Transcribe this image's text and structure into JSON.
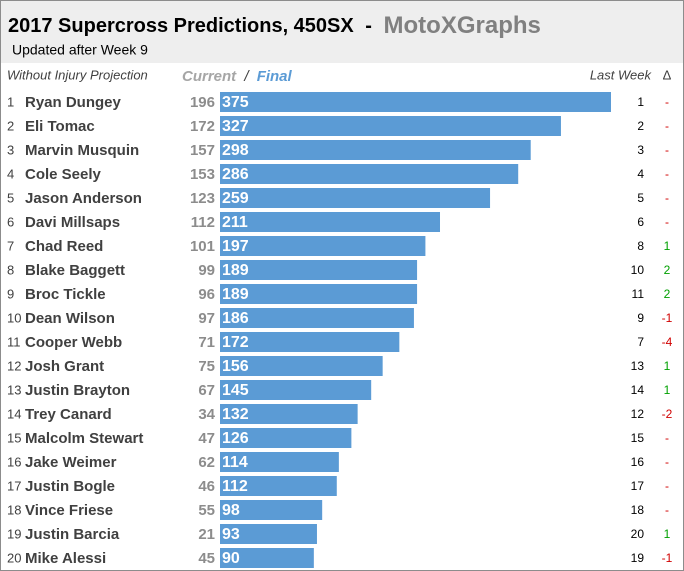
{
  "chart_data": {
    "type": "bar",
    "title": "2017 Supercross Predictions, 450SX",
    "title_separator": "-",
    "brand": "MotoXGraphs",
    "subtitle": "Updated after Week 9",
    "column_headers": {
      "left": "Without Injury Projection",
      "current": "Current",
      "slash": "/",
      "final": "Final",
      "last_week": "Last Week",
      "change": "Δ"
    },
    "ranks": [
      1,
      2,
      3,
      4,
      5,
      6,
      7,
      8,
      9,
      10,
      11,
      12,
      13,
      14,
      15,
      16,
      17,
      18,
      19,
      20
    ],
    "categories": [
      "Ryan Dungey",
      "Eli Tomac",
      "Marvin Musquin",
      "Cole Seely",
      "Jason Anderson",
      "Davi Millsaps",
      "Chad Reed",
      "Blake Baggett",
      "Broc Tickle",
      "Dean Wilson",
      "Cooper Webb",
      "Josh Grant",
      "Justin Brayton",
      "Trey Canard",
      "Malcolm Stewart",
      "Jake Weimer",
      "Justin Bogle",
      "Vince Friese",
      "Justin Barcia",
      "Mike Alessi"
    ],
    "current": [
      196,
      172,
      157,
      153,
      123,
      112,
      101,
      99,
      96,
      97,
      71,
      75,
      67,
      34,
      47,
      62,
      46,
      55,
      21,
      45
    ],
    "series": [
      {
        "name": "Final",
        "color": "#5b9bd5",
        "values": [
          375,
          327,
          298,
          286,
          259,
          211,
          197,
          189,
          189,
          186,
          172,
          156,
          145,
          132,
          126,
          114,
          112,
          98,
          93,
          90
        ]
      }
    ],
    "last_week": [
      1,
      2,
      3,
      4,
      5,
      6,
      8,
      10,
      11,
      9,
      7,
      13,
      14,
      12,
      15,
      16,
      17,
      18,
      20,
      19
    ],
    "change": [
      {
        "value": 0,
        "label": "-"
      },
      {
        "value": 0,
        "label": "-"
      },
      {
        "value": 0,
        "label": "-"
      },
      {
        "value": 0,
        "label": "-"
      },
      {
        "value": 0,
        "label": "-"
      },
      {
        "value": 0,
        "label": "-"
      },
      1,
      2,
      2,
      -1,
      -4,
      1,
      1,
      -2,
      {
        "value": 0,
        "label": "-"
      },
      {
        "value": 0,
        "label": "-"
      },
      {
        "value": 0,
        "label": "-"
      },
      {
        "value": 0,
        "label": "-"
      },
      1,
      -1
    ],
    "change_colors": {
      "positive": "#00a000",
      "negative": "#d00000",
      "zero": "#d00000"
    }
  }
}
